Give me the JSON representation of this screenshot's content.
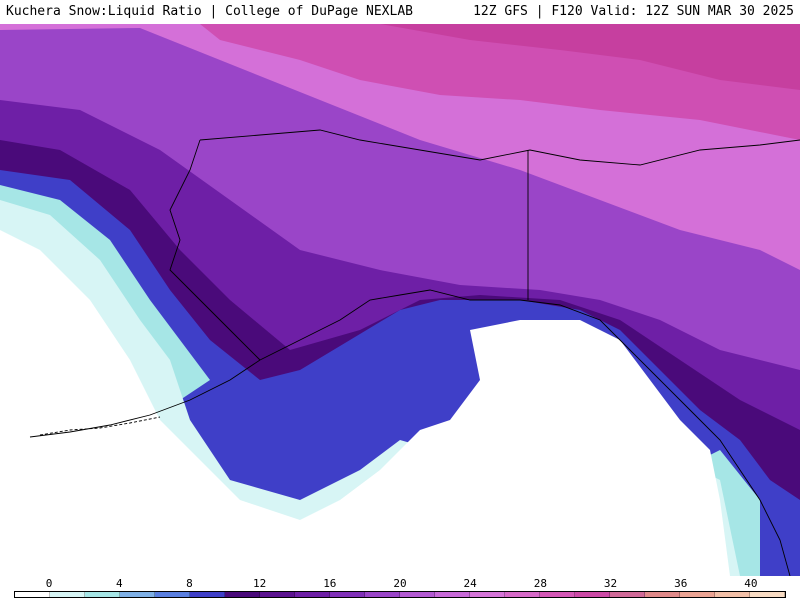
{
  "header": {
    "title_left": "Kuchera Snow:Liquid Ratio | College of DuPage NEXLAB",
    "title_right": "12Z GFS | F120 Valid: 12Z SUN MAR 30 2025"
  },
  "colorbar": {
    "ticks": [
      "0",
      "4",
      "8",
      "12",
      "16",
      "20",
      "24",
      "28",
      "32",
      "36",
      "40"
    ],
    "colors": [
      "#ffffff",
      "#d7f5f5",
      "#a6e6e6",
      "#7fb0e6",
      "#5a7fe0",
      "#3f3fc8",
      "#4a0a7a",
      "#5c1390",
      "#6e1fa6",
      "#8030b8",
      "#9a45c8",
      "#b35ad2",
      "#c86ad8",
      "#d575d8",
      "#d66ac8",
      "#d458b6",
      "#cc4aa6",
      "#d06a98",
      "#e08a8a",
      "#eba494",
      "#f2c0a8",
      "#f8dcc4"
    ]
  },
  "map": {
    "region": "Alaska and Gulf of Alaska"
  }
}
